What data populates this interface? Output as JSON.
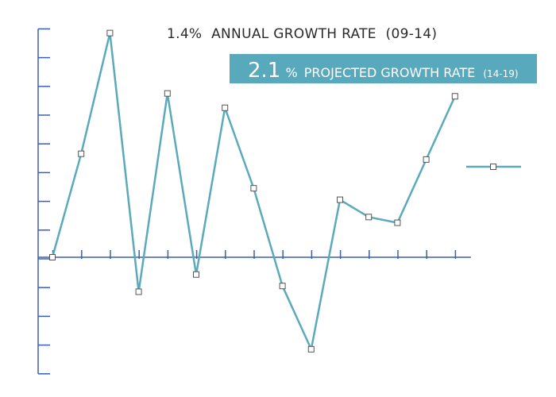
{
  "chart_data": {
    "type": "line",
    "title": "",
    "xlabel": "",
    "ylabel": "",
    "grid": false,
    "legend_position": "right",
    "annotations": {
      "historical": {
        "value": "1.4%",
        "label": "ANNUAL GROWTH RATE",
        "period": "(09-14)"
      },
      "projected": {
        "value": "2.1",
        "symbol": "%",
        "label": "PROJECTED GROWTH RATE",
        "period": "(14-19)"
      }
    },
    "x": [
      1,
      2,
      3,
      4,
      5,
      6,
      7,
      8,
      9,
      10,
      11,
      12,
      13,
      14,
      15
    ],
    "xlim": [
      0.5,
      15.5
    ],
    "ylim": [
      -4,
      8
    ],
    "series": [
      {
        "values": [
          0,
          3.6,
          7.8,
          -1.2,
          5.7,
          -0.6,
          5.2,
          2.4,
          -1.0,
          -3.2,
          2.0,
          1.4,
          1.2,
          3.4,
          5.6
        ]
      }
    ],
    "colors": {
      "line": "#5aaabb",
      "axis": "#3a5fb0",
      "banner": "#59a9bd",
      "marker_fill": "#ffffff",
      "marker_stroke": "#555555"
    }
  }
}
